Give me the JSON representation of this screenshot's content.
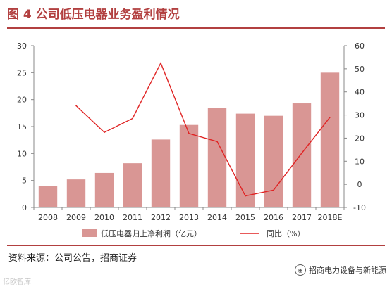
{
  "title": "图 4  公司低压电器业务盈利情况",
  "source": "资料来源：公司公告，招商证券",
  "watermark_right": "招商电力设备与新能源",
  "watermark_left": "亿欧智库",
  "colors": {
    "bar": "#d99694",
    "line": "#e02424",
    "title": "#b24040"
  },
  "chart_data": {
    "type": "bar",
    "categories": [
      "2008",
      "2009",
      "2010",
      "2011",
      "2012",
      "2013",
      "2014",
      "2015",
      "2016",
      "2017",
      "2018E"
    ],
    "series": [
      {
        "name": "低压电器归上净利润（亿元）",
        "type": "bar",
        "axis": "left",
        "values": [
          4.0,
          5.2,
          6.4,
          8.2,
          12.6,
          15.3,
          18.4,
          17.4,
          17.0,
          19.3,
          25.0
        ]
      },
      {
        "name": "同比（%）",
        "type": "line",
        "axis": "right",
        "values": [
          null,
          34.0,
          22.5,
          28.5,
          52.5,
          22.0,
          18.5,
          -5.0,
          -2.5,
          13.5,
          29.0
        ]
      }
    ],
    "y_left": {
      "min": 0,
      "max": 30,
      "ticks": [
        0,
        5,
        10,
        15,
        20,
        25,
        30
      ]
    },
    "y_right": {
      "min": -10,
      "max": 60,
      "ticks": [
        -10,
        0,
        10,
        20,
        30,
        40,
        50,
        60
      ]
    },
    "grid": false,
    "legend_position": "bottom"
  }
}
